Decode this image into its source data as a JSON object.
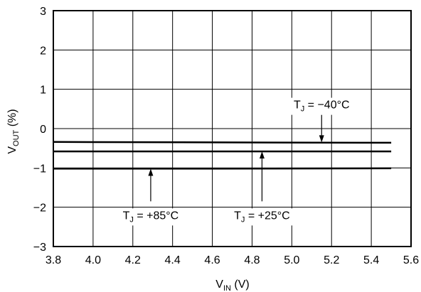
{
  "chart_data": {
    "type": "line",
    "xlabel": {
      "main": "V",
      "sub": "IN",
      "rest": " (V)"
    },
    "ylabel": {
      "main": "V",
      "sub": "OUT",
      "rest": " (%)"
    },
    "xlim": [
      3.8,
      5.6
    ],
    "ylim": [
      -3,
      3
    ],
    "x_ticks": [
      "3.8",
      "4.0",
      "4.2",
      "4.4",
      "4.6",
      "4.8",
      "5.0",
      "5.2",
      "5.4",
      "5.6"
    ],
    "y_ticks": [
      "3",
      "2",
      "1",
      "0",
      "−1",
      "−2",
      "−3"
    ],
    "grid": true,
    "series": [
      {
        "name": "TJ = −40°C",
        "x": [
          3.8,
          4.6,
          5.5
        ],
        "y": [
          -0.34,
          -0.35,
          -0.36
        ]
      },
      {
        "name": "TJ = +25°C",
        "x": [
          3.8,
          4.6,
          5.5
        ],
        "y": [
          -0.58,
          -0.58,
          -0.58
        ]
      },
      {
        "name": "TJ = +85°C",
        "x": [
          3.8,
          4.6,
          5.5
        ],
        "y": [
          -1.02,
          -1.02,
          -1.01
        ]
      }
    ],
    "annotations": [
      {
        "id": "t85",
        "main": "T",
        "sub": "J",
        "rest": " = +85°C",
        "arrow_x": 4.29,
        "arrow_to_y": -1.02,
        "arrow_from_y": -1.85,
        "direction": "up"
      },
      {
        "id": "t25",
        "main": "T",
        "sub": "J",
        "rest": " = +25°C",
        "arrow_x": 4.85,
        "arrow_to_y": -0.58,
        "arrow_from_y": -1.85,
        "direction": "up"
      },
      {
        "id": "t40",
        "main": "T",
        "sub": "J",
        "rest": " = −40°C",
        "arrow_x": 5.15,
        "arrow_to_y": -0.35,
        "arrow_from_y": 0.35,
        "direction": "down"
      }
    ]
  }
}
